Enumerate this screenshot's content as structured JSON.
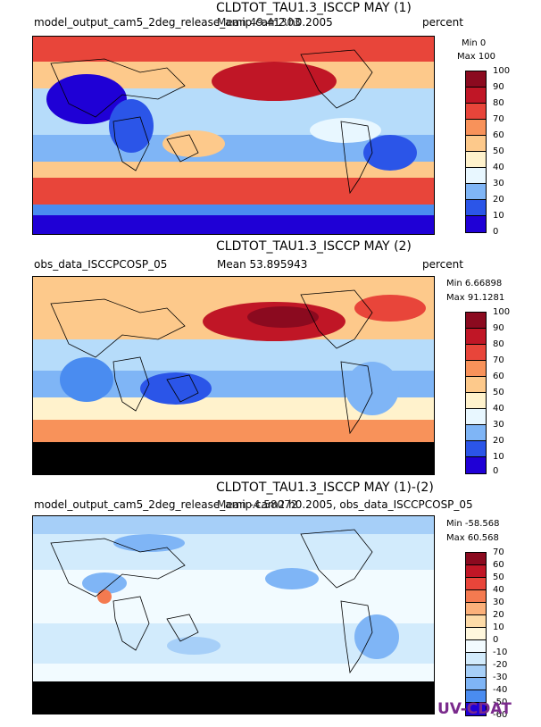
{
  "chart_data": [
    {
      "type": "heatmap",
      "title": "CLDTOT_TAU1.3_ISCCP MAY (1)",
      "left_label": "model_output_cam5_2deg_release_amip.cam2.h0.2005",
      "mean_label": "Mean 49.41303",
      "units": "percent",
      "min_label": "Min 0",
      "max_label": "Max 100",
      "colorbar": {
        "levels": [
          "0",
          "10",
          "20",
          "30",
          "40",
          "50",
          "60",
          "70",
          "80",
          "90",
          "100"
        ],
        "colors": [
          "#1f00d6",
          "#2b55e8",
          "#4a8cf0",
          "#7fb5f6",
          "#b6dcfa",
          "#e8f7ff",
          "#fff2cc",
          "#fdc98b",
          "#f8925a",
          "#e8453a",
          "#c01626",
          "#8b0a1f"
        ]
      }
    },
    {
      "type": "heatmap",
      "title": "CLDTOT_TAU1.3_ISCCP MAY (2)",
      "left_label": "obs_data_ISCCPCOSP_05",
      "mean_label": "Mean 53.895943",
      "units": "percent",
      "min_label": "Min 6.66898",
      "max_label": "Max 91.1281",
      "colorbar": {
        "levels": [
          "0",
          "10",
          "20",
          "30",
          "40",
          "50",
          "60",
          "70",
          "80",
          "90",
          "100"
        ],
        "colors": [
          "#1f00d6",
          "#2b55e8",
          "#4a8cf0",
          "#7fb5f6",
          "#b6dcfa",
          "#e8f7ff",
          "#fff2cc",
          "#fdc98b",
          "#f8925a",
          "#e8453a",
          "#c01626",
          "#8b0a1f"
        ]
      }
    },
    {
      "type": "heatmap",
      "title": "CLDTOT_TAU1.3_ISCCP MAY (1)-(2)",
      "left_label": "model_output_cam5_2deg_release_amip.cam2.h0.2005, obs_data_ISCCPCOSP_05",
      "mean_label": "Mean -4.58072",
      "units": "percent",
      "min_label": "Min -58.568",
      "max_label": "Max 60.568",
      "colorbar": {
        "levels": [
          "-60",
          "-50",
          "-40",
          "-30",
          "-20",
          "-10",
          "0",
          "10",
          "20",
          "30",
          "40",
          "50",
          "60",
          "70"
        ],
        "colors": [
          "#1f00d6",
          "#2b55e8",
          "#4a8cf0",
          "#7fb5f6",
          "#a6cff8",
          "#d2ebfc",
          "#f2fbff",
          "#fff7dd",
          "#fddba8",
          "#fbb07a",
          "#f47a50",
          "#e8453a",
          "#c01626"
        ]
      }
    }
  ],
  "logo": {
    "text": "UV-CDAT"
  }
}
